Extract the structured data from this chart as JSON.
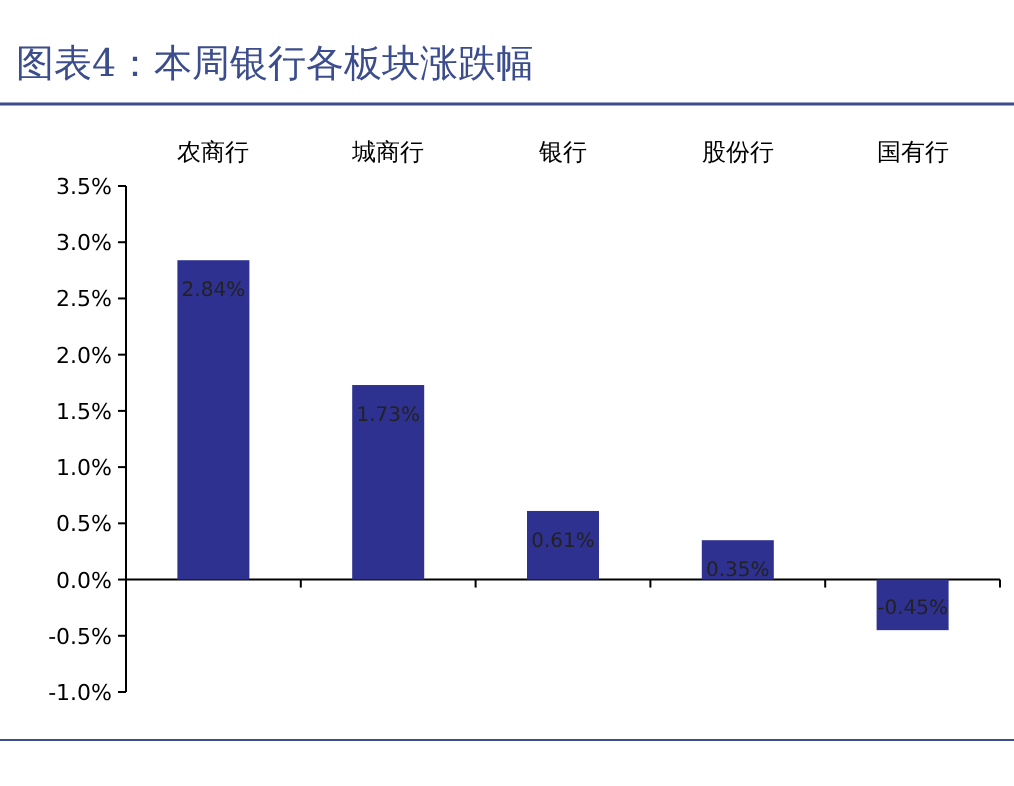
{
  "chart_data": {
    "type": "bar",
    "title": "图表4：本周银行各板块涨跌幅",
    "categories": [
      "农商行",
      "城商行",
      "银行",
      "股份行",
      "国有行"
    ],
    "values": [
      2.84,
      1.73,
      0.61,
      0.35,
      -0.45
    ],
    "value_labels": [
      "2.84%",
      "1.73%",
      "0.61%",
      "0.35%",
      "-0.45%"
    ],
    "color": "#2e3190",
    "ylim": [
      -1.0,
      3.5
    ],
    "yticks": [
      {
        "value": -1.0,
        "label": "-1.0%"
      },
      {
        "value": -0.5,
        "label": "-0.5%"
      },
      {
        "value": 0,
        "label": "0.0%"
      },
      {
        "value": 0.5,
        "label": "0.5%"
      },
      {
        "value": 1.0,
        "label": "1.0%"
      },
      {
        "value": 1.5,
        "label": "1.5%"
      },
      {
        "value": 2.0,
        "label": "2.0%"
      },
      {
        "value": 2.5,
        "label": "2.5%"
      },
      {
        "value": 3.0,
        "label": "3.0%"
      },
      {
        "value": 3.5,
        "label": "3.5%"
      }
    ]
  }
}
